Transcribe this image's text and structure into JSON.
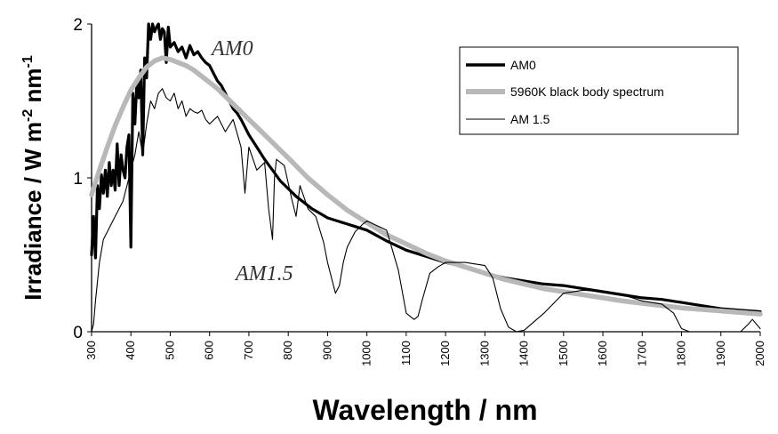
{
  "chart_data": {
    "type": "line",
    "xlabel": "Wavelength / nm",
    "ylabel": {
      "prefix": "Irradiance / W m",
      "exp1": "-2",
      "mid": " nm",
      "exp2": "-1"
    },
    "xlim": [
      300,
      2000
    ],
    "ylim": [
      0,
      2
    ],
    "x_ticks": [
      "300",
      "400",
      "500",
      "600",
      "700",
      "800",
      "900",
      "1000",
      "1100",
      "1200",
      "1300",
      "1400",
      "1500",
      "1600",
      "1700",
      "1800",
      "1900",
      "2000"
    ],
    "y_ticks": [
      "0",
      "1",
      "2"
    ],
    "grid": false,
    "legend_position": "top-right",
    "annotations": [
      "AM0",
      "AM1.5"
    ],
    "series": [
      {
        "name": "AM0",
        "color": "#000000",
        "style": "thick",
        "x": [
          300,
          305,
          310,
          315,
          320,
          325,
          330,
          335,
          340,
          345,
          350,
          355,
          360,
          365,
          370,
          375,
          380,
          385,
          390,
          395,
          400,
          405,
          410,
          415,
          420,
          425,
          430,
          435,
          440,
          445,
          450,
          455,
          460,
          465,
          470,
          475,
          480,
          485,
          490,
          495,
          500,
          510,
          520,
          530,
          540,
          550,
          560,
          570,
          580,
          590,
          600,
          610,
          620,
          630,
          640,
          650,
          660,
          670,
          680,
          690,
          700,
          720,
          740,
          760,
          780,
          800,
          820,
          840,
          860,
          880,
          900,
          950,
          1000,
          1050,
          1100,
          1150,
          1200,
          1250,
          1300,
          1350,
          1400,
          1450,
          1500,
          1550,
          1600,
          1650,
          1700,
          1750,
          1800,
          1850,
          1900,
          1950,
          2000
        ],
        "y": [
          0.5,
          0.75,
          0.48,
          0.95,
          0.8,
          1.02,
          0.9,
          1.05,
          0.88,
          1.1,
          0.95,
          1.05,
          0.92,
          1.22,
          0.95,
          1.15,
          1.05,
          1.0,
          1.2,
          1.28,
          0.55,
          1.55,
          1.35,
          1.62,
          1.52,
          1.7,
          1.15,
          1.78,
          1.65,
          2.0,
          1.9,
          2.0,
          1.95,
          1.98,
          2.0,
          1.9,
          1.97,
          1.95,
          1.75,
          1.98,
          1.85,
          1.88,
          1.82,
          1.85,
          1.78,
          1.86,
          1.8,
          1.82,
          1.78,
          1.75,
          1.73,
          1.68,
          1.63,
          1.6,
          1.55,
          1.5,
          1.45,
          1.42,
          1.38,
          1.33,
          1.28,
          1.2,
          1.12,
          1.05,
          0.98,
          0.93,
          0.88,
          0.84,
          0.8,
          0.77,
          0.74,
          0.7,
          0.66,
          0.59,
          0.53,
          0.49,
          0.45,
          0.42,
          0.38,
          0.35,
          0.33,
          0.31,
          0.3,
          0.28,
          0.26,
          0.24,
          0.22,
          0.21,
          0.19,
          0.17,
          0.15,
          0.14,
          0.13
        ]
      },
      {
        "name": "5960K black body spectrum",
        "color": "#b8b8b8",
        "style": "thick",
        "x": [
          300,
          320,
          340,
          360,
          380,
          400,
          420,
          440,
          460,
          480,
          500,
          520,
          540,
          560,
          580,
          600,
          620,
          640,
          660,
          680,
          700,
          720,
          740,
          760,
          780,
          800,
          850,
          900,
          950,
          1000,
          1050,
          1100,
          1150,
          1200,
          1250,
          1300,
          1350,
          1400,
          1450,
          1500,
          1550,
          1600,
          1650,
          1700,
          1750,
          1800,
          1850,
          1900,
          1950,
          2000
        ],
        "y": [
          0.89,
          1.05,
          1.2,
          1.34,
          1.46,
          1.57,
          1.65,
          1.72,
          1.76,
          1.78,
          1.77,
          1.75,
          1.73,
          1.7,
          1.66,
          1.62,
          1.58,
          1.53,
          1.48,
          1.43,
          1.38,
          1.33,
          1.28,
          1.23,
          1.18,
          1.13,
          1.0,
          0.89,
          0.79,
          0.71,
          0.63,
          0.57,
          0.51,
          0.46,
          0.42,
          0.38,
          0.34,
          0.31,
          0.28,
          0.26,
          0.24,
          0.22,
          0.2,
          0.185,
          0.17,
          0.155,
          0.145,
          0.135,
          0.125,
          0.115
        ]
      },
      {
        "name": "AM 1.5",
        "color": "#000000",
        "style": "thin",
        "x": [
          300,
          305,
          310,
          320,
          330,
          340,
          350,
          360,
          370,
          380,
          390,
          400,
          410,
          420,
          430,
          440,
          450,
          460,
          470,
          480,
          490,
          500,
          510,
          520,
          530,
          540,
          550,
          560,
          570,
          580,
          590,
          600,
          620,
          640,
          660,
          680,
          690,
          700,
          720,
          740,
          750,
          760,
          765,
          770,
          790,
          810,
          820,
          830,
          850,
          870,
          890,
          900,
          910,
          920,
          930,
          940,
          950,
          970,
          990,
          1000,
          1050,
          1080,
          1100,
          1120,
          1130,
          1140,
          1160,
          1180,
          1200,
          1250,
          1300,
          1320,
          1340,
          1360,
          1380,
          1400,
          1450,
          1500,
          1550,
          1600,
          1650,
          1700,
          1750,
          1780,
          1800,
          1820,
          1850,
          1900,
          1950,
          1970,
          1980,
          2000
        ],
        "y": [
          0.0,
          0.05,
          0.2,
          0.45,
          0.6,
          0.65,
          0.7,
          0.75,
          0.8,
          0.85,
          0.95,
          1.05,
          1.15,
          1.3,
          1.15,
          1.35,
          1.5,
          1.45,
          1.55,
          1.58,
          1.52,
          1.5,
          1.55,
          1.45,
          1.5,
          1.4,
          1.45,
          1.43,
          1.42,
          1.44,
          1.38,
          1.35,
          1.4,
          1.3,
          1.38,
          1.2,
          0.9,
          1.2,
          1.05,
          1.1,
          0.8,
          0.6,
          1.0,
          1.12,
          1.08,
          0.85,
          0.75,
          0.95,
          0.8,
          0.75,
          0.58,
          0.45,
          0.35,
          0.25,
          0.3,
          0.45,
          0.55,
          0.65,
          0.7,
          0.72,
          0.66,
          0.4,
          0.12,
          0.08,
          0.1,
          0.2,
          0.38,
          0.42,
          0.45,
          0.45,
          0.43,
          0.35,
          0.15,
          0.03,
          0.0,
          0.01,
          0.12,
          0.25,
          0.27,
          0.26,
          0.24,
          0.2,
          0.18,
          0.12,
          0.02,
          0.0,
          0.0,
          0.0,
          0.0,
          0.05,
          0.08,
          0.02
        ]
      }
    ]
  }
}
